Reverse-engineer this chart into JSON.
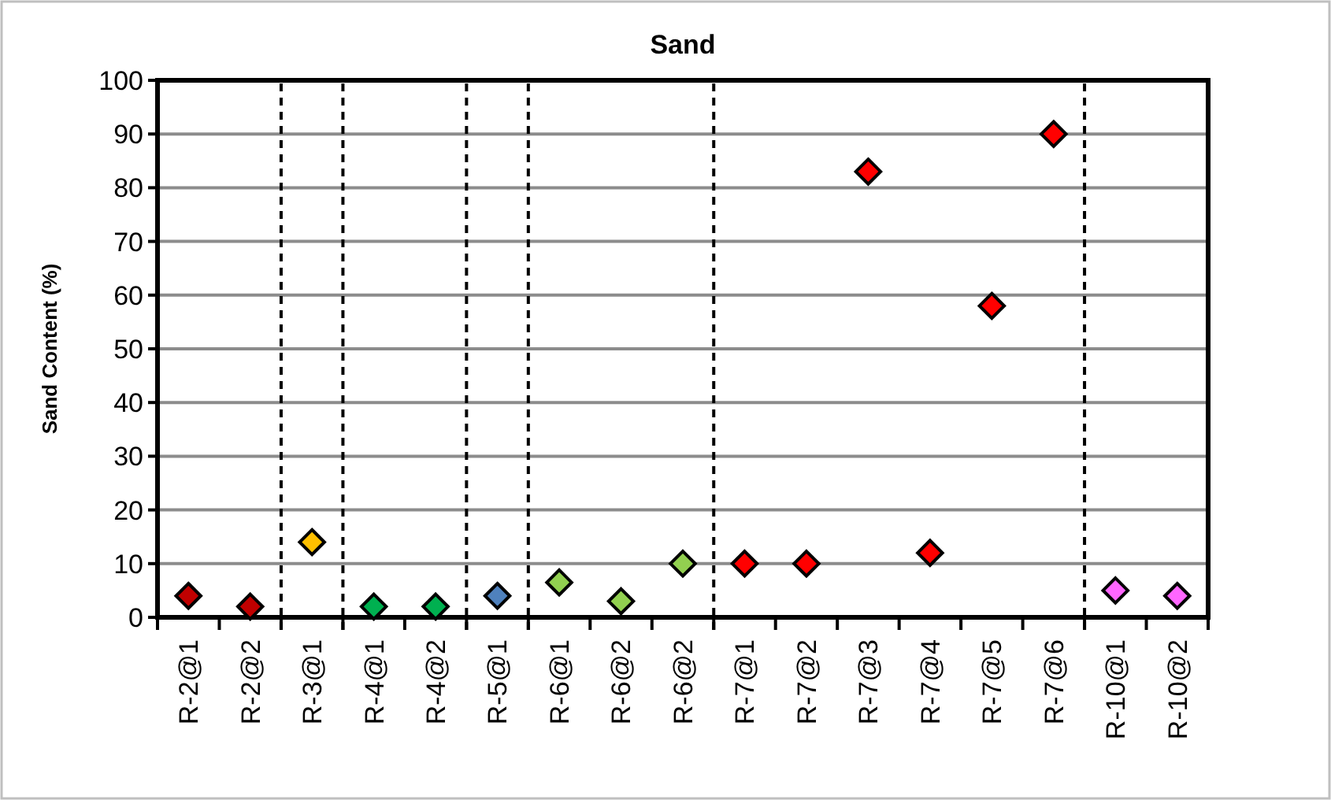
{
  "chart_data": {
    "type": "scatter",
    "title": "Sand",
    "ylabel": "Sand Content (%)",
    "categories": [
      "R-2@1",
      "R-2@2",
      "R-3@1",
      "R-4@1",
      "R-4@2",
      "R-5@1",
      "R-6@1",
      "R-6@2",
      "R-6@2",
      "R-7@1",
      "R-7@2",
      "R-7@3",
      "R-7@4",
      "R-7@5",
      "R-7@6",
      "R-10@1",
      "R-10@2"
    ],
    "values": [
      4,
      2,
      14,
      2,
      2,
      4,
      6.5,
      3,
      10,
      10,
      10,
      83,
      12,
      58,
      90,
      5,
      4
    ],
    "colors": [
      "#c00000",
      "#c00000",
      "#ffc000",
      "#00b050",
      "#00b050",
      "#4f81bd",
      "#92d050",
      "#92d050",
      "#92d050",
      "#ff0000",
      "#ff0000",
      "#ff0000",
      "#ff0000",
      "#ff0000",
      "#ff0000",
      "#ff66ff",
      "#ff66ff"
    ],
    "ylim": [
      0,
      100
    ],
    "yticks": [
      0,
      10,
      20,
      30,
      40,
      50,
      60,
      70,
      80,
      90,
      100
    ],
    "grid": "y",
    "marker": "diamond"
  }
}
